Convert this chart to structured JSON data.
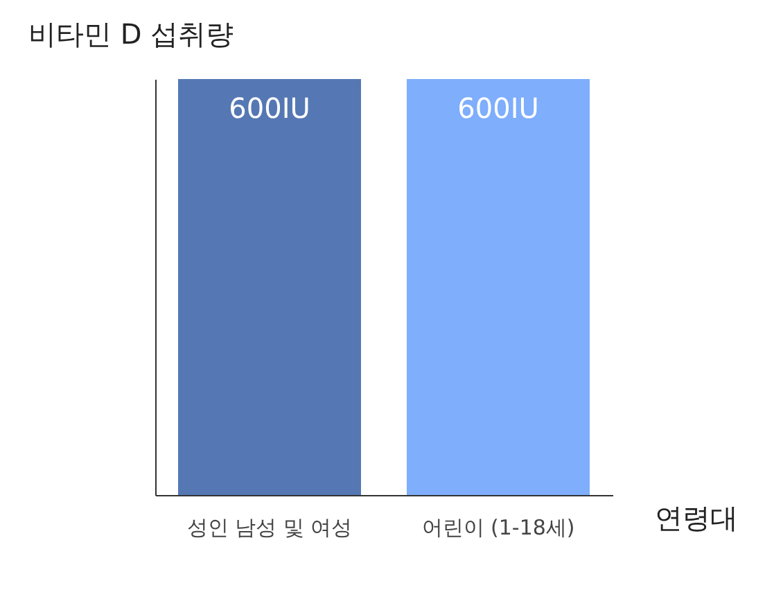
{
  "chart_data": {
    "type": "bar",
    "ylabel": "비타민 D 섭취량",
    "xlabel": "연령대",
    "categories": [
      "성인 남성 및 여성",
      "어린이 (1-18세)"
    ],
    "values": [
      600,
      600
    ],
    "colors": [
      "#5578b4",
      "#7eaefc"
    ],
    "value_labels": [
      "600IU",
      "600IU"
    ],
    "tick_labels": "x",
    "grid": false
  }
}
